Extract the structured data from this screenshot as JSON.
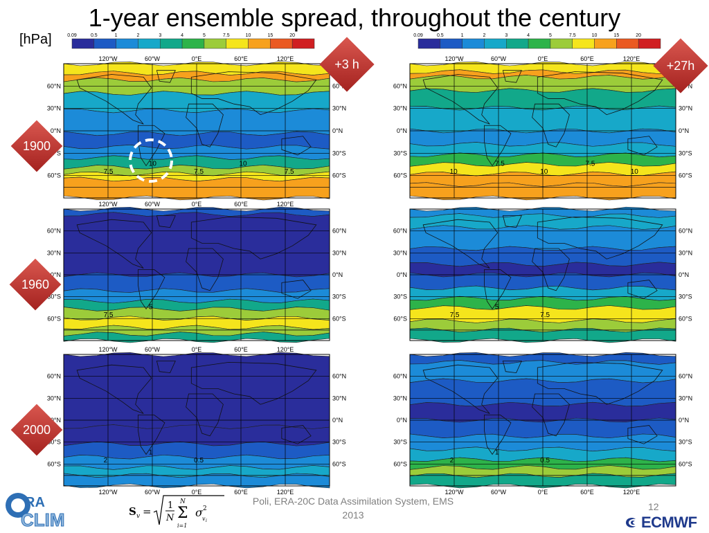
{
  "title": "1-year ensemble spread, throughout the century",
  "unit": "[hPa]",
  "colorbar": {
    "ticks": [
      "0.09",
      "0.5",
      "1",
      "2",
      "3",
      "4",
      "5",
      "7.5",
      "10",
      "15",
      "20"
    ],
    "colors": [
      "#2a2d9b",
      "#1d5bc4",
      "#1c8bd8",
      "#17a8c9",
      "#12a88a",
      "#2db34a",
      "#9ccc3a",
      "#f5e51c",
      "#f7a11d",
      "#ea5a22",
      "#d01f22"
    ]
  },
  "panels": [
    {
      "label": "1900",
      "lead": "+3 h",
      "top_labels": [
        "120°W",
        "60°W",
        "0°E",
        "60°E",
        "120°E"
      ],
      "lat_labels": [
        "60°N",
        "30°N",
        "0°N",
        "30°S",
        "60°S"
      ],
      "contours": [
        "7.5",
        "10",
        "7.5",
        "10",
        "7.5"
      ]
    },
    {
      "label": "1900",
      "lead": "+27h",
      "top_labels": [
        "120°W",
        "60°W",
        "0°E",
        "60°E",
        "120°E"
      ],
      "lat_labels": [
        "60°N",
        "30°N",
        "0°N",
        "30°S",
        "60°S"
      ],
      "contours": [
        "10",
        "7.5",
        "10",
        "7.5",
        "10"
      ]
    },
    {
      "label": "1960",
      "top_labels": [
        "120°W",
        "60°W",
        "0°E",
        "60°E",
        "120°E"
      ],
      "lat_labels": [
        "60°N",
        "30°N",
        "0°N",
        "30°S",
        "60°S"
      ],
      "contours": [
        "7.5",
        "5"
      ]
    },
    {
      "label": "1960",
      "top_labels": [
        "120°W",
        "60°W",
        "0°E",
        "60°E",
        "120°E"
      ],
      "lat_labels": [
        "60°N",
        "30°N",
        "0°N",
        "30°S",
        "60°S"
      ],
      "contours": [
        "7.5",
        "5",
        "7.5"
      ]
    },
    {
      "label": "2000",
      "top_labels": [
        "120°W",
        "60°W",
        "0°E",
        "60°E",
        "120°E"
      ],
      "lat_labels": [
        "60°N",
        "30°N",
        "0°N",
        "30°S",
        "60°S"
      ],
      "contours": [
        "2",
        "1",
        "0.5"
      ]
    },
    {
      "label": "2000",
      "top_labels": [
        "120°W",
        "60°W",
        "0°E",
        "60°E",
        "120°E"
      ],
      "lat_labels": [
        "60°N",
        "30°N",
        "0°N",
        "30°S",
        "60°S"
      ],
      "contours": [
        "2",
        "1",
        "0.5"
      ]
    }
  ],
  "year_labels": [
    "1900",
    "1960",
    "2000"
  ],
  "lead_labels": [
    "+3 h",
    "+27h"
  ],
  "formula": "S_v = sqrt( (1/N) Σ_{i=1}^{N} σ²_{v_i} )",
  "citation": "Poli, ERA-20C Data Assimilation System, EMS 2013",
  "page_number": "12",
  "ecmwf_logo_text": "ECMWF",
  "era_clim_logo": "ERA CLIM"
}
